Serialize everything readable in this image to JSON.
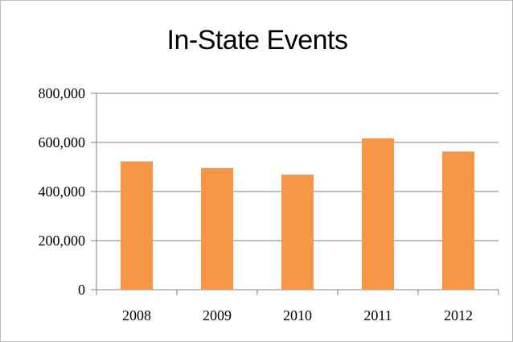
{
  "chart_data": {
    "type": "bar",
    "title": "In-State Events",
    "xlabel": "",
    "ylabel": "",
    "categories": [
      "2008",
      "2009",
      "2010",
      "2011",
      "2012"
    ],
    "values": [
      523000,
      496000,
      469000,
      617000,
      563000
    ],
    "ylim": [
      0,
      800000
    ],
    "yticks": [
      0,
      200000,
      400000,
      600000,
      800000
    ],
    "ytick_labels": [
      "0",
      "200,000",
      "400,000",
      "600,000",
      "800,000"
    ],
    "grid": true,
    "legend": "none",
    "bar_color": "#f79646",
    "grid_color": "#808080"
  }
}
